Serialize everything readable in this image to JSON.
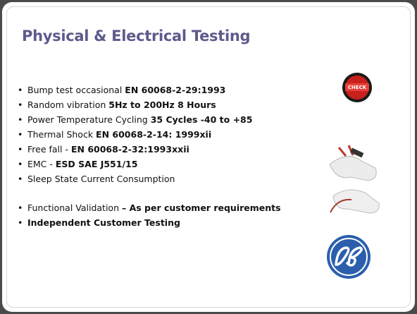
{
  "title": "Physical & Electrical Testing",
  "check_icon": {
    "label": "CHECK"
  },
  "bullets": [
    {
      "segments": [
        {
          "text": "Bump test occasional ",
          "bold": false
        },
        {
          "text": "EN 60068-2-29:1993",
          "bold": true
        }
      ]
    },
    {
      "segments": [
        {
          "text": "Random vibration ",
          "bold": false
        },
        {
          "text": "5Hz to 200Hz 8 Hours",
          "bold": true
        }
      ]
    },
    {
      "segments": [
        {
          "text": "Power Temperature Cycling ",
          "bold": false
        },
        {
          "text": "35 Cycles -40 to +85",
          "bold": true
        }
      ]
    },
    {
      "segments": [
        {
          "text": "Thermal Shock ",
          "bold": false
        },
        {
          "text": "EN 60068-2-14: 1999xii",
          "bold": true
        }
      ]
    },
    {
      "segments": [
        {
          "text": "Free fall - ",
          "bold": false
        },
        {
          "text": "EN 60068-2-32:1993xxii",
          "bold": true
        }
      ]
    },
    {
      "segments": [
        {
          "text": "EMC - ",
          "bold": false
        },
        {
          "text": "ESD SAE J551/15",
          "bold": true
        }
      ]
    },
    {
      "segments": [
        {
          "text": "Sleep State Current Consumption",
          "bold": false
        }
      ]
    },
    {
      "segments": [
        {
          "text": "Functional Validation ",
          "bold": false
        },
        {
          "text": "– As per customer requirements",
          "bold": true
        }
      ]
    },
    {
      "segments": [
        {
          "text": "Independent Customer Testing",
          "bold": true
        }
      ]
    }
  ]
}
